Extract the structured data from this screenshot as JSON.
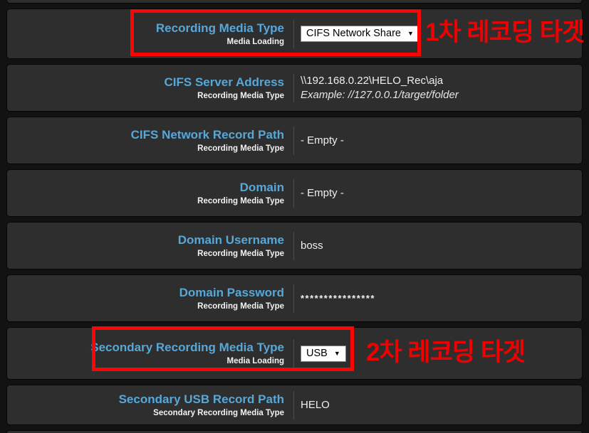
{
  "colors": {
    "page_background": "#121212",
    "row_background": "#2e2e2e",
    "label_blue": "#57a7d7",
    "value_white": "#efefef",
    "annotation_red": "#fb0505",
    "select_background": "#ffffff"
  },
  "ui": {
    "select_arrow": "▼"
  },
  "rows": [
    {
      "label": "Recording Media Type",
      "sublabel": "Media Loading",
      "control": {
        "type": "select",
        "value": "CIFS Network Share"
      }
    },
    {
      "label": "CIFS Server Address",
      "sublabel": "Recording Media Type",
      "value": "\\\\192.168.0.22\\HELO_Rec\\aja",
      "example": "Example: //127.0.0.1/target/folder"
    },
    {
      "label": "CIFS Network Record Path",
      "sublabel": "Recording Media Type",
      "value": "- Empty -"
    },
    {
      "label": "Domain",
      "sublabel": "Recording Media Type",
      "value": "- Empty -"
    },
    {
      "label": "Domain Username",
      "sublabel": "Recording Media Type",
      "value": "boss"
    },
    {
      "label": "Domain Password",
      "sublabel": "Recording Media Type",
      "value": "****************"
    },
    {
      "label": "Secondary Recording Media Type",
      "sublabel": "Media Loading",
      "control": {
        "type": "select",
        "value": "USB"
      }
    },
    {
      "label": "Secondary USB Record Path",
      "sublabel": "Secondary Recording Media Type",
      "value": "HELO"
    }
  ],
  "annotations": {
    "primary": {
      "label": "1차 레코딩 타겟"
    },
    "secondary": {
      "label": "2차 레코딩 타겟"
    }
  }
}
